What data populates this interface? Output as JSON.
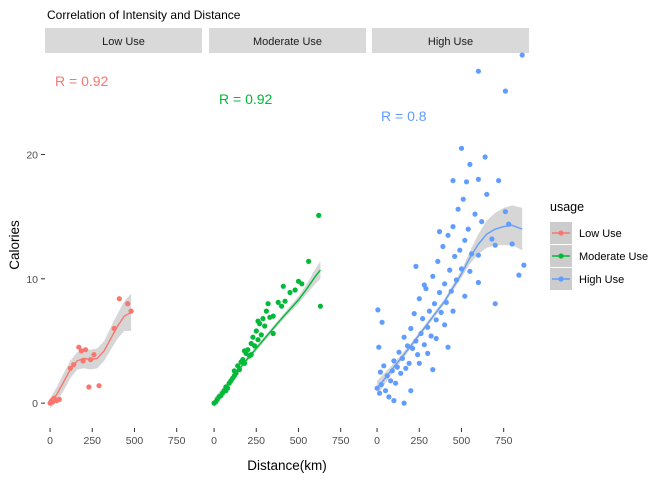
{
  "chart_data": {
    "type": "scatter",
    "title": "Correlation of Intensity and Distance",
    "xlabel": "Distance(km)",
    "ylabel": "Calories",
    "xlim": [
      -30,
      900
    ],
    "ylim": [
      -2,
      28
    ],
    "x_ticks": [
      0,
      250,
      500,
      750
    ],
    "y_ticks": [
      0,
      10,
      20
    ],
    "grid": false,
    "legend": {
      "title": "usage",
      "position": "right",
      "entries": [
        "Low Use",
        "Moderate Use",
        "High Use"
      ]
    },
    "colors": {
      "Low Use": "#F8766D",
      "Moderate Use": "#00BA38",
      "High Use": "#619CFF",
      "ribbon": "#cccccc",
      "strip": "#d9d9d9"
    },
    "facets": [
      {
        "name": "Low Use",
        "r_label": "R = 0.92",
        "points": [
          [
            0,
            0
          ],
          [
            5,
            0.1
          ],
          [
            10,
            0.2
          ],
          [
            15,
            0.1
          ],
          [
            20,
            0.3
          ],
          [
            25,
            0.4
          ],
          [
            40,
            0.2
          ],
          [
            55,
            0.3
          ],
          [
            120,
            2.8
          ],
          [
            140,
            3.1
          ],
          [
            170,
            4.5
          ],
          [
            185,
            4.2
          ],
          [
            195,
            3.4
          ],
          [
            210,
            4.3
          ],
          [
            230,
            1.3
          ],
          [
            240,
            3.5
          ],
          [
            260,
            3.9
          ],
          [
            290,
            1.4
          ],
          [
            380,
            6.0
          ],
          [
            410,
            8.4
          ],
          [
            460,
            8.0
          ],
          [
            480,
            7.4
          ]
        ],
        "trend": [
          [
            0,
            0
          ],
          [
            40,
            0.7
          ],
          [
            80,
            1.7
          ],
          [
            120,
            2.7
          ],
          [
            160,
            3.4
          ],
          [
            200,
            3.6
          ],
          [
            240,
            3.5
          ],
          [
            280,
            3.6
          ],
          [
            320,
            4.2
          ],
          [
            360,
            5.2
          ],
          [
            400,
            6.2
          ],
          [
            440,
            7.0
          ],
          [
            480,
            7.3
          ]
        ],
        "band_halfwidth": [
          0.4,
          0.6,
          0.7,
          0.7,
          0.7,
          0.8,
          0.8,
          0.8,
          0.8,
          0.9,
          1.0,
          1.2,
          1.5
        ]
      },
      {
        "name": "Moderate Use",
        "r_label": "R = 0.92",
        "points": [
          [
            0,
            0
          ],
          [
            10,
            0.1
          ],
          [
            20,
            0.3
          ],
          [
            30,
            0.5
          ],
          [
            40,
            0.6
          ],
          [
            50,
            0.8
          ],
          [
            60,
            1.0
          ],
          [
            70,
            1.3
          ],
          [
            80,
            1.2
          ],
          [
            90,
            1.6
          ],
          [
            100,
            1.8
          ],
          [
            110,
            2.0
          ],
          [
            120,
            2.2
          ],
          [
            130,
            2.4
          ],
          [
            140,
            3.0
          ],
          [
            150,
            2.7
          ],
          [
            160,
            3.3
          ],
          [
            170,
            3.5
          ],
          [
            180,
            4.2
          ],
          [
            190,
            4.0
          ],
          [
            200,
            4.3
          ],
          [
            210,
            3.8
          ],
          [
            220,
            4.8
          ],
          [
            230,
            5.3
          ],
          [
            240,
            4.6
          ],
          [
            250,
            5.8
          ],
          [
            260,
            5.1
          ],
          [
            270,
            6.4
          ],
          [
            280,
            5.5
          ],
          [
            290,
            6.8
          ],
          [
            300,
            6.2
          ],
          [
            310,
            7.4
          ],
          [
            330,
            6.9
          ],
          [
            350,
            7.0
          ],
          [
            380,
            8.1
          ],
          [
            400,
            7.8
          ],
          [
            420,
            8.2
          ],
          [
            450,
            8.9
          ],
          [
            480,
            9.1
          ],
          [
            500,
            9.8
          ],
          [
            520,
            9.6
          ],
          [
            560,
            11.4
          ],
          [
            620,
            15.1
          ],
          [
            630,
            7.8
          ],
          [
            70,
            1.0
          ],
          [
            120,
            2.6
          ],
          [
            180,
            3.2
          ],
          [
            220,
            3.9
          ],
          [
            260,
            6.6
          ],
          [
            320,
            8.0
          ],
          [
            350,
            5.6
          ],
          [
            410,
            9.4
          ]
        ],
        "trend": [
          [
            0,
            0
          ],
          [
            100,
            1.9
          ],
          [
            200,
            3.6
          ],
          [
            300,
            5.2
          ],
          [
            400,
            6.8
          ],
          [
            500,
            8.3
          ],
          [
            550,
            9.2
          ],
          [
            600,
            10.2
          ],
          [
            630,
            10.7
          ]
        ],
        "band_halfwidth": [
          0.4,
          0.2,
          0.2,
          0.2,
          0.2,
          0.3,
          0.4,
          0.6,
          0.7
        ]
      },
      {
        "name": "High Use",
        "r_label": "R = 0.8",
        "points": [
          [
            0,
            1.2
          ],
          [
            5,
            7.5
          ],
          [
            10,
            4.5
          ],
          [
            15,
            0.8
          ],
          [
            20,
            2.5
          ],
          [
            25,
            1.5
          ],
          [
            30,
            6.5
          ],
          [
            40,
            3.0
          ],
          [
            50,
            1.0
          ],
          [
            60,
            2.2
          ],
          [
            70,
            0.5
          ],
          [
            80,
            1.8
          ],
          [
            90,
            2.6
          ],
          [
            100,
            3.4
          ],
          [
            110,
            1.6
          ],
          [
            120,
            2.9
          ],
          [
            130,
            4.1
          ],
          [
            140,
            2.4
          ],
          [
            150,
            3.6
          ],
          [
            160,
            5.3
          ],
          [
            170,
            2.8
          ],
          [
            180,
            4.6
          ],
          [
            190,
            3.2
          ],
          [
            200,
            6.0
          ],
          [
            210,
            4.4
          ],
          [
            220,
            7.2
          ],
          [
            230,
            5.0
          ],
          [
            240,
            3.9
          ],
          [
            250,
            8.4
          ],
          [
            260,
            5.6
          ],
          [
            270,
            6.8
          ],
          [
            280,
            4.7
          ],
          [
            290,
            9.2
          ],
          [
            300,
            6.1
          ],
          [
            310,
            7.4
          ],
          [
            320,
            5.4
          ],
          [
            330,
            10.2
          ],
          [
            340,
            8.0
          ],
          [
            350,
            6.7
          ],
          [
            360,
            11.4
          ],
          [
            370,
            8.9
          ],
          [
            380,
            7.3
          ],
          [
            390,
            12.6
          ],
          [
            400,
            9.6
          ],
          [
            410,
            8.1
          ],
          [
            420,
            13.5
          ],
          [
            430,
            10.7
          ],
          [
            440,
            9.0
          ],
          [
            450,
            14.2
          ],
          [
            460,
            11.8
          ],
          [
            470,
            9.9
          ],
          [
            480,
            15.6
          ],
          [
            490,
            12.3
          ],
          [
            500,
            10.8
          ],
          [
            510,
            16.4
          ],
          [
            520,
            13.1
          ],
          [
            530,
            17.8
          ],
          [
            540,
            14.0
          ],
          [
            550,
            19.2
          ],
          [
            560,
            12.0
          ],
          [
            580,
            15.2
          ],
          [
            600,
            18.0
          ],
          [
            620,
            14.6
          ],
          [
            650,
            16.8
          ],
          [
            680,
            13.2
          ],
          [
            720,
            17.9
          ],
          [
            760,
            15.4
          ],
          [
            800,
            12.8
          ],
          [
            840,
            10.3
          ],
          [
            870,
            11.1
          ],
          [
            500,
            20.5
          ],
          [
            450,
            17.9
          ],
          [
            600,
            26.7
          ],
          [
            760,
            25.1
          ],
          [
            860,
            28.0
          ],
          [
            600,
            9.7
          ],
          [
            700,
            8.0
          ],
          [
            230,
            11.0
          ],
          [
            100,
            0.2
          ],
          [
            160,
            0.0
          ],
          [
            330,
            2.7
          ],
          [
            420,
            4.5
          ],
          [
            280,
            9.5
          ],
          [
            370,
            13.8
          ],
          [
            640,
            19.8
          ],
          [
            200,
            1.0
          ],
          [
            250,
            3.2
          ],
          [
            300,
            4.0
          ],
          [
            350,
            5.2
          ],
          [
            400,
            6.3
          ],
          [
            450,
            7.4
          ],
          [
            520,
            8.6
          ],
          [
            550,
            10.6
          ],
          [
            600,
            11.9
          ],
          [
            700,
            12.7
          ],
          [
            780,
            14.4
          ]
        ],
        "trend": [
          [
            0,
            1.2
          ],
          [
            100,
            2.9
          ],
          [
            200,
            4.6
          ],
          [
            300,
            6.4
          ],
          [
            400,
            8.2
          ],
          [
            500,
            10.4
          ],
          [
            550,
            11.7
          ],
          [
            600,
            12.8
          ],
          [
            650,
            13.6
          ],
          [
            700,
            14.0
          ],
          [
            750,
            14.2
          ],
          [
            800,
            14.3
          ],
          [
            860,
            14.0
          ]
        ],
        "band_halfwidth": [
          0.6,
          0.3,
          0.2,
          0.2,
          0.2,
          0.3,
          0.5,
          0.8,
          1.1,
          1.3,
          1.5,
          1.6,
          1.7
        ]
      }
    ]
  }
}
